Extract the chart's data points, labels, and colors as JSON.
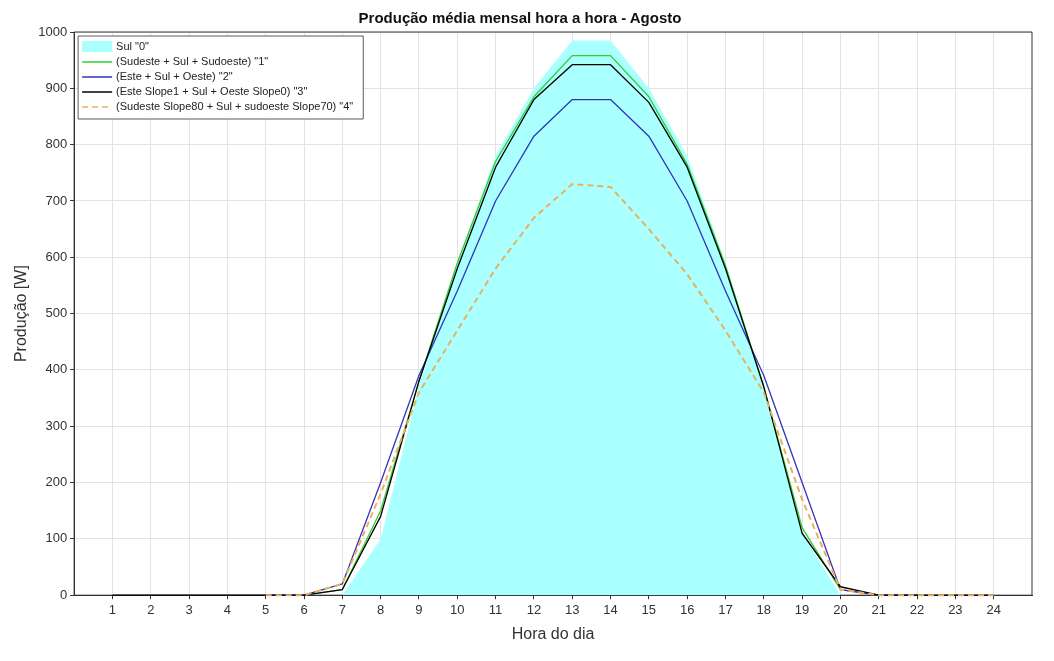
{
  "chart_data": {
    "type": "line",
    "title": "Produção média mensal hora a hora - Agosto",
    "xlabel": "Hora do dia",
    "ylabel": "Produção [W]",
    "x": [
      1,
      2,
      3,
      4,
      5,
      6,
      7,
      8,
      9,
      10,
      11,
      12,
      13,
      14,
      15,
      16,
      17,
      18,
      19,
      20,
      21,
      22,
      23,
      24
    ],
    "series": [
      {
        "name": "Sul \"0\"",
        "type": "area",
        "color": "#aaffff",
        "values": [
          0,
          0,
          0,
          0,
          0,
          0,
          0,
          100,
          370,
          590,
          780,
          900,
          985,
          985,
          900,
          780,
          590,
          370,
          110,
          0,
          0,
          0,
          0,
          0
        ]
      },
      {
        "name": "(Sudeste + Sul + Sudoeste) \"1\"",
        "color": "#33cc33",
        "values": [
          null,
          null,
          null,
          null,
          null,
          0,
          10,
          150,
          380,
          590,
          770,
          885,
          958,
          958,
          885,
          765,
          585,
          370,
          120,
          10,
          0,
          null,
          null,
          null
        ]
      },
      {
        "name": "(Este + Sul + Oeste) \"2\"",
        "color": "#3333bb",
        "values": [
          null,
          null,
          null,
          null,
          0,
          0,
          20,
          200,
          390,
          540,
          700,
          815,
          880,
          880,
          815,
          700,
          540,
          390,
          200,
          10,
          0,
          0,
          null,
          null
        ]
      },
      {
        "name": "(Este Slope1 + Sul + Oeste Slope0) \"3\"",
        "color": "#000000",
        "values": [
          0,
          0,
          0,
          0,
          0,
          0,
          10,
          140,
          380,
          580,
          760,
          880,
          942,
          942,
          875,
          760,
          580,
          370,
          110,
          15,
          0,
          0,
          0,
          0
        ]
      },
      {
        "name": "(Sudeste Slope80 + Sul + sudoeste Slope70) \"4\"",
        "color": "#e8b060",
        "line_style": "dashed",
        "values": [
          null,
          null,
          null,
          null,
          0,
          0,
          20,
          180,
          360,
          470,
          580,
          670,
          730,
          725,
          650,
          570,
          470,
          360,
          170,
          10,
          0,
          0,
          0,
          0
        ]
      }
    ],
    "xlim": [
      0,
      25
    ],
    "xticks": [
      1,
      2,
      3,
      4,
      5,
      6,
      7,
      8,
      9,
      10,
      11,
      12,
      13,
      14,
      15,
      16,
      17,
      18,
      19,
      20,
      21,
      22,
      23,
      24
    ],
    "ylim": [
      0,
      1000
    ],
    "yticks": [
      0,
      100,
      200,
      300,
      400,
      500,
      600,
      700,
      800,
      900,
      1000
    ],
    "grid": true,
    "legend": "top left",
    "marker": "none"
  }
}
